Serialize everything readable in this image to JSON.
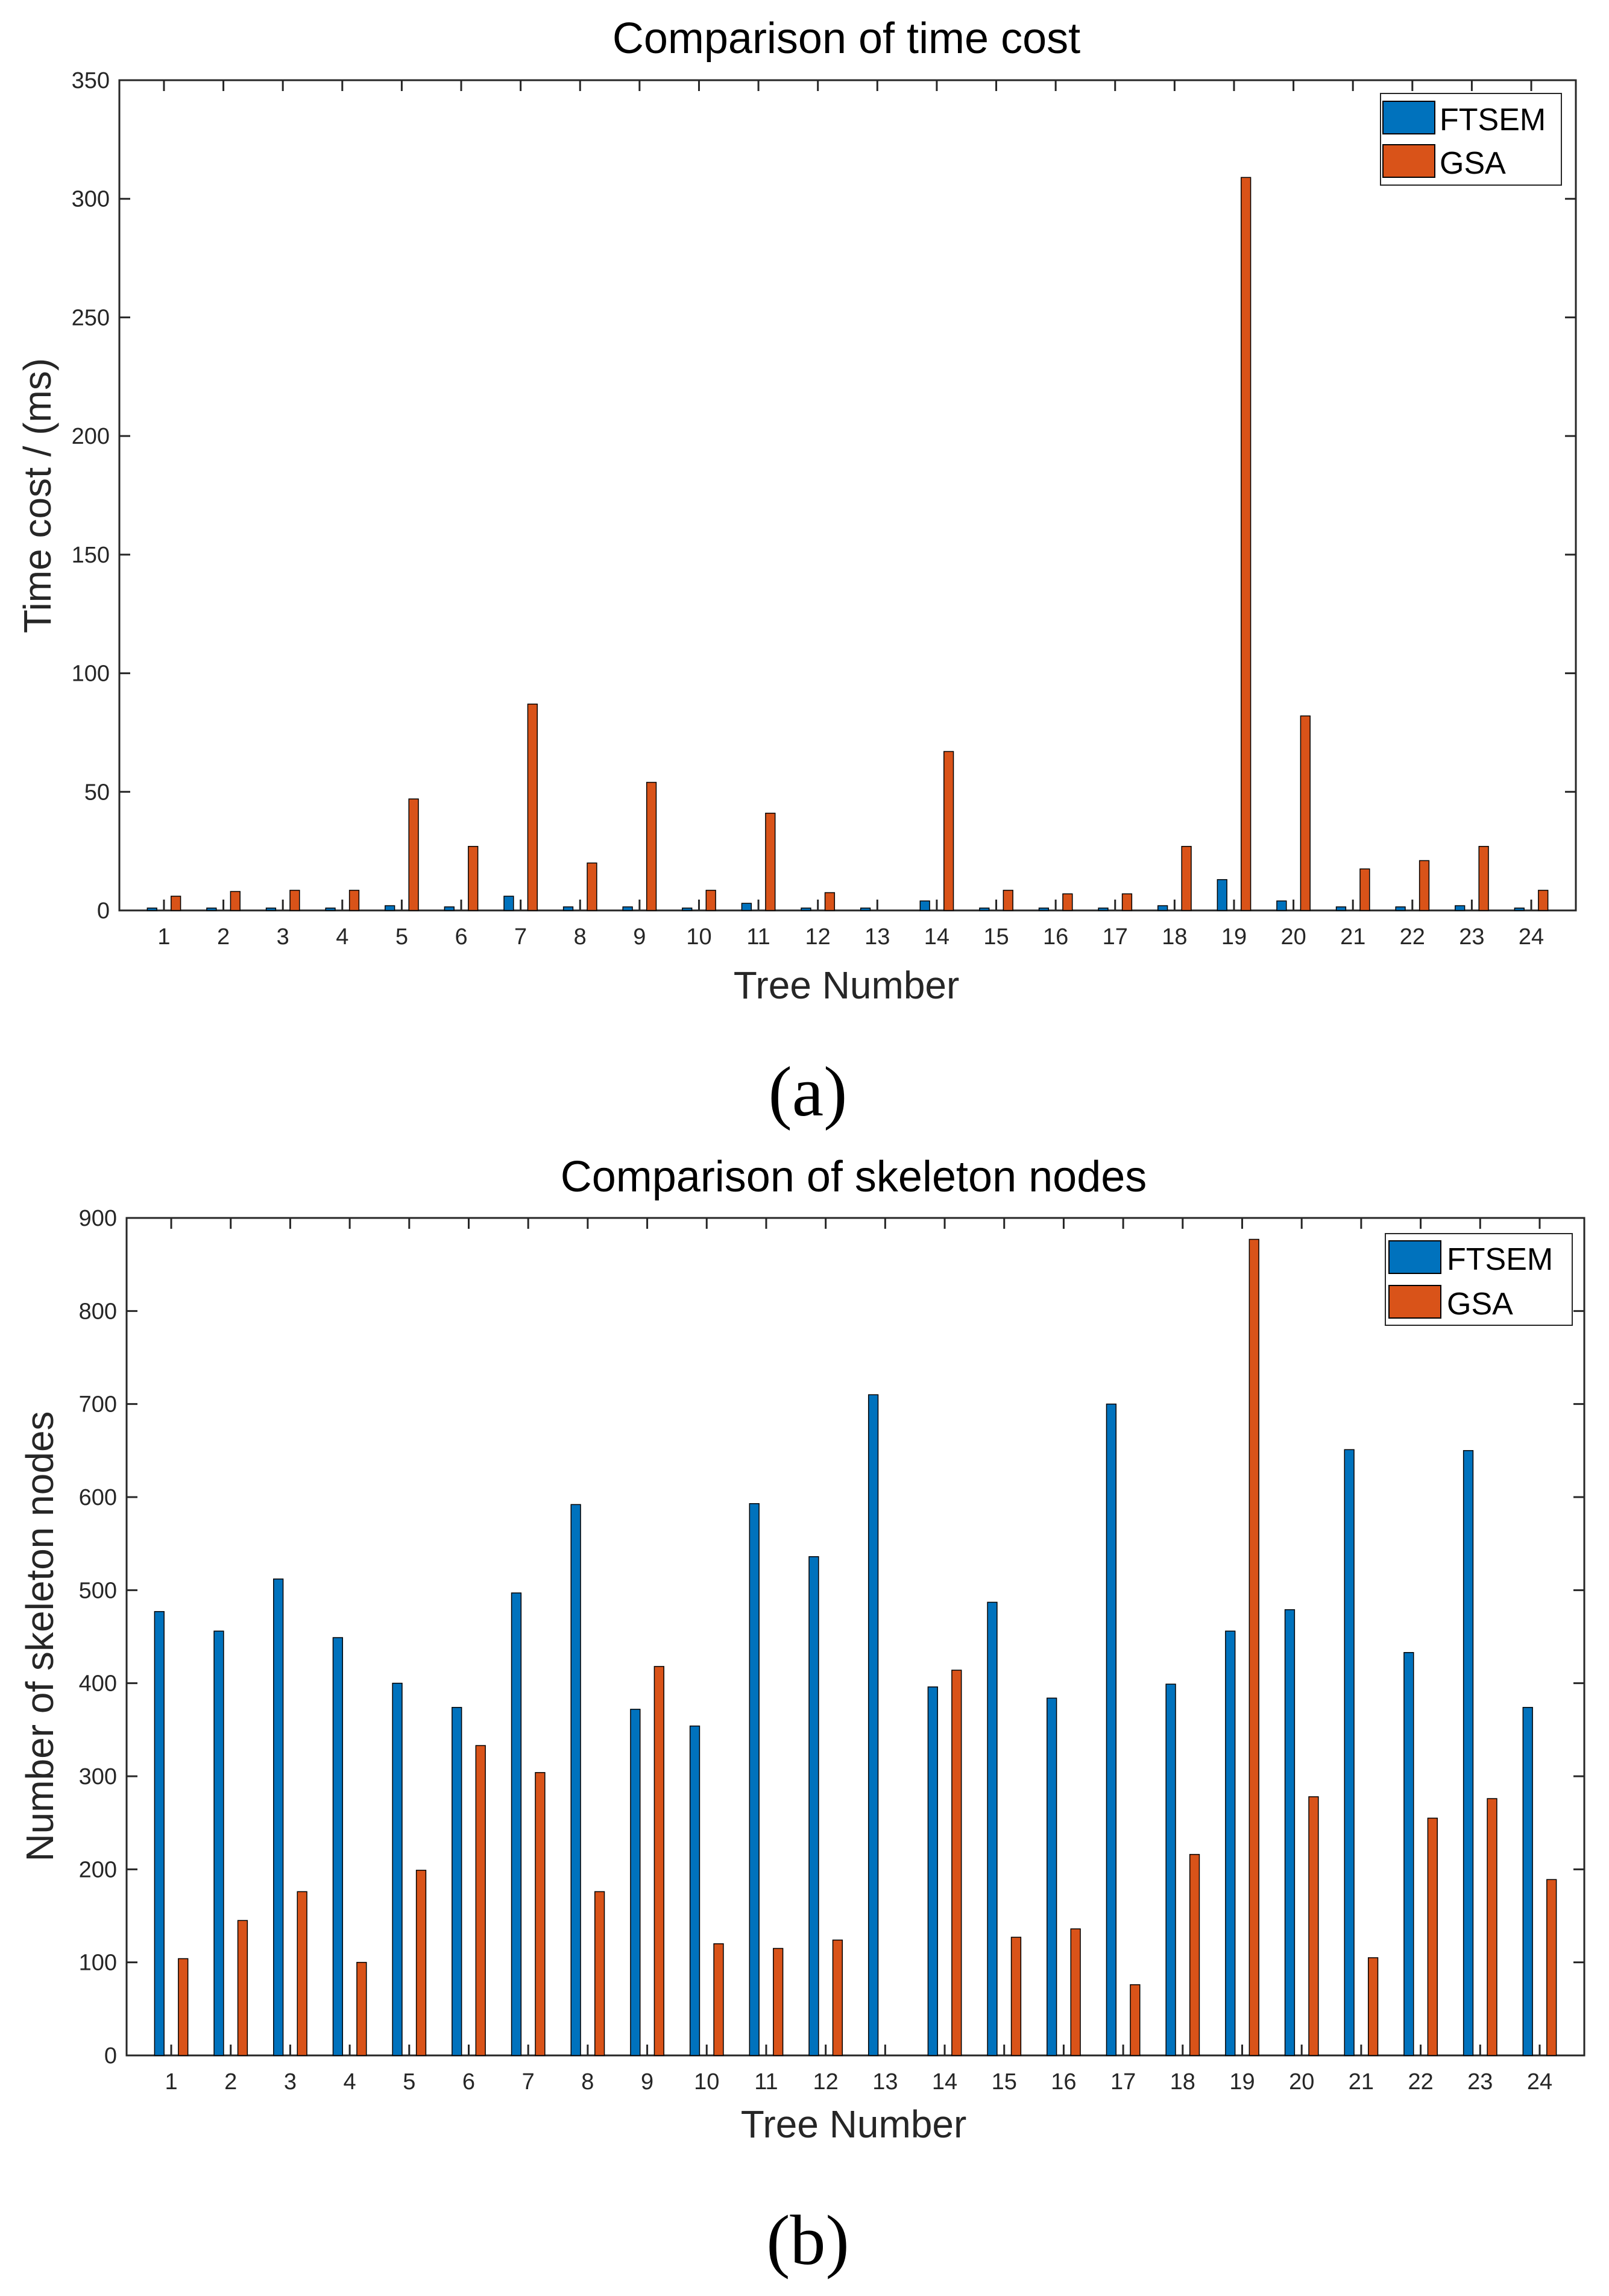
{
  "chart_data": [
    {
      "type": "bar",
      "title": "Comparison of time cost",
      "xlabel": "Tree Number",
      "ylabel": "Time cost / (ms)",
      "ylim": [
        0,
        350
      ],
      "yticks": [
        0,
        50,
        100,
        150,
        200,
        250,
        300,
        350
      ],
      "categories": [
        "1",
        "2",
        "3",
        "4",
        "5",
        "6",
        "7",
        "8",
        "9",
        "10",
        "11",
        "12",
        "13",
        "14",
        "15",
        "16",
        "17",
        "18",
        "19",
        "20",
        "21",
        "22",
        "23",
        "24"
      ],
      "legend_position": "top-right",
      "series": [
        {
          "name": "FTSEM",
          "color": "#0072bd",
          "values": [
            1,
            1,
            1,
            1,
            2,
            1.5,
            6,
            1.5,
            1.5,
            1,
            3,
            1,
            1,
            4,
            1,
            1,
            1,
            2,
            13,
            4,
            1.5,
            1.5,
            2,
            1
          ]
        },
        {
          "name": "GSA",
          "color": "#d95319",
          "values": [
            6,
            8,
            8.5,
            8.5,
            47,
            27,
            87,
            20,
            54,
            8.5,
            41,
            7.5,
            0,
            67,
            8.5,
            7,
            7,
            27,
            309,
            82,
            17.5,
            21,
            27,
            8.5
          ]
        }
      ],
      "caption": "(a)"
    },
    {
      "type": "bar",
      "title": "Comparison of skeleton nodes",
      "xlabel": "Tree Number",
      "ylabel": "Number of skeleton nodes",
      "ylim": [
        0,
        900
      ],
      "yticks": [
        0,
        100,
        200,
        300,
        400,
        500,
        600,
        700,
        800,
        900
      ],
      "categories": [
        "1",
        "2",
        "3",
        "4",
        "5",
        "6",
        "7",
        "8",
        "9",
        "10",
        "11",
        "12",
        "13",
        "14",
        "15",
        "16",
        "17",
        "18",
        "19",
        "20",
        "21",
        "22",
        "23",
        "24"
      ],
      "legend_position": "top-right",
      "series": [
        {
          "name": "FTSEM",
          "color": "#0072bd",
          "values": [
            477,
            456,
            512,
            449,
            400,
            374,
            497,
            592,
            372,
            354,
            593,
            536,
            710,
            396,
            487,
            384,
            700,
            399,
            456,
            479,
            651,
            433,
            650,
            374
          ]
        },
        {
          "name": "GSA",
          "color": "#d95319",
          "values": [
            104,
            145,
            176,
            100,
            199,
            333,
            304,
            176,
            418,
            120,
            115,
            124,
            0,
            414,
            127,
            136,
            76,
            216,
            877,
            278,
            105,
            255,
            276,
            189
          ]
        }
      ],
      "caption": "(b)"
    }
  ]
}
